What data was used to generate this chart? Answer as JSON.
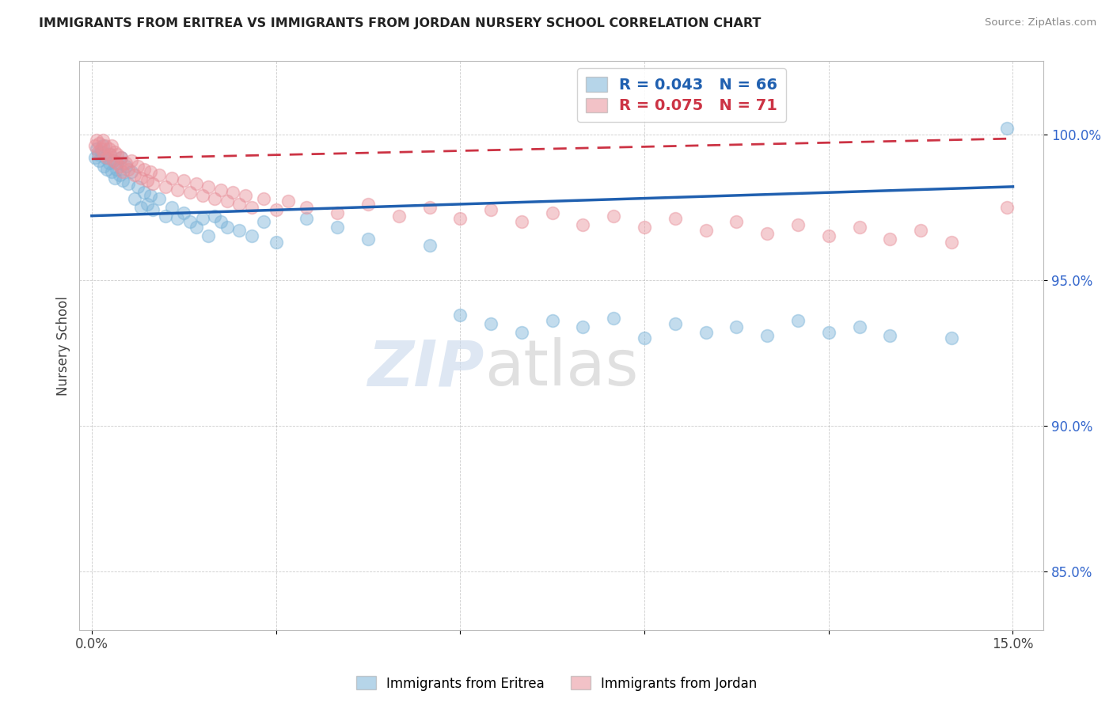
{
  "title": "IMMIGRANTS FROM ERITREA VS IMMIGRANTS FROM JORDAN NURSERY SCHOOL CORRELATION CHART",
  "source": "Source: ZipAtlas.com",
  "ylabel": "Nursery School",
  "legend_eritrea": "R = 0.043   N = 66",
  "legend_jordan": "R = 0.075   N = 71",
  "legend_label_eritrea": "Immigrants from Eritrea",
  "legend_label_jordan": "Immigrants from Jordan",
  "eritrea_color": "#7ab3d8",
  "jordan_color": "#e8909a",
  "trend_eritrea_color": "#2060b0",
  "trend_jordan_color": "#cc3344",
  "background_color": "#ffffff",
  "eritrea_x": [
    0.05,
    0.08,
    0.1,
    0.12,
    0.15,
    0.18,
    0.2,
    0.22,
    0.25,
    0.28,
    0.3,
    0.32,
    0.35,
    0.38,
    0.4,
    0.42,
    0.45,
    0.48,
    0.5,
    0.55,
    0.6,
    0.65,
    0.7,
    0.75,
    0.8,
    0.85,
    0.9,
    0.95,
    1.0,
    1.1,
    1.2,
    1.3,
    1.4,
    1.5,
    1.6,
    1.7,
    1.8,
    1.9,
    2.0,
    2.1,
    2.2,
    2.4,
    2.6,
    2.8,
    3.0,
    3.5,
    4.0,
    4.5,
    5.5,
    6.0,
    6.5,
    7.0,
    7.5,
    8.0,
    8.5,
    9.0,
    9.5,
    10.0,
    10.5,
    11.0,
    11.5,
    12.0,
    12.5,
    13.0,
    14.0,
    14.9
  ],
  "eritrea_y": [
    99.2,
    99.5,
    99.3,
    99.1,
    99.4,
    99.6,
    98.9,
    99.2,
    98.8,
    99.0,
    99.3,
    98.7,
    99.1,
    98.5,
    98.8,
    99.0,
    98.6,
    99.2,
    98.4,
    98.9,
    98.3,
    98.7,
    97.8,
    98.2,
    97.5,
    98.0,
    97.6,
    97.9,
    97.4,
    97.8,
    97.2,
    97.5,
    97.1,
    97.3,
    97.0,
    96.8,
    97.1,
    96.5,
    97.2,
    97.0,
    96.8,
    96.7,
    96.5,
    97.0,
    96.3,
    97.1,
    96.8,
    96.4,
    96.2,
    93.8,
    93.5,
    93.2,
    93.6,
    93.4,
    93.7,
    93.0,
    93.5,
    93.2,
    93.4,
    93.1,
    93.6,
    93.2,
    93.4,
    93.1,
    93.0,
    100.2
  ],
  "jordan_x": [
    0.05,
    0.08,
    0.1,
    0.12,
    0.15,
    0.18,
    0.2,
    0.22,
    0.25,
    0.28,
    0.3,
    0.32,
    0.35,
    0.38,
    0.4,
    0.42,
    0.45,
    0.48,
    0.5,
    0.55,
    0.6,
    0.65,
    0.7,
    0.75,
    0.8,
    0.85,
    0.9,
    0.95,
    1.0,
    1.1,
    1.2,
    1.3,
    1.4,
    1.5,
    1.6,
    1.7,
    1.8,
    1.9,
    2.0,
    2.1,
    2.2,
    2.3,
    2.4,
    2.5,
    2.6,
    2.8,
    3.0,
    3.2,
    3.5,
    4.0,
    4.5,
    5.0,
    5.5,
    6.0,
    6.5,
    7.0,
    7.5,
    8.0,
    8.5,
    9.0,
    9.5,
    10.0,
    10.5,
    11.0,
    11.5,
    12.0,
    12.5,
    13.0,
    13.5,
    14.0,
    14.9
  ],
  "jordan_y": [
    99.6,
    99.8,
    99.4,
    99.7,
    99.5,
    99.8,
    99.3,
    99.6,
    99.2,
    99.5,
    99.3,
    99.6,
    99.1,
    99.4,
    99.0,
    99.3,
    98.9,
    99.2,
    98.7,
    99.0,
    98.8,
    99.1,
    98.6,
    98.9,
    98.5,
    98.8,
    98.4,
    98.7,
    98.3,
    98.6,
    98.2,
    98.5,
    98.1,
    98.4,
    98.0,
    98.3,
    97.9,
    98.2,
    97.8,
    98.1,
    97.7,
    98.0,
    97.6,
    97.9,
    97.5,
    97.8,
    97.4,
    97.7,
    97.5,
    97.3,
    97.6,
    97.2,
    97.5,
    97.1,
    97.4,
    97.0,
    97.3,
    96.9,
    97.2,
    96.8,
    97.1,
    96.7,
    97.0,
    96.6,
    96.9,
    96.5,
    96.8,
    96.4,
    96.7,
    96.3,
    97.5
  ]
}
